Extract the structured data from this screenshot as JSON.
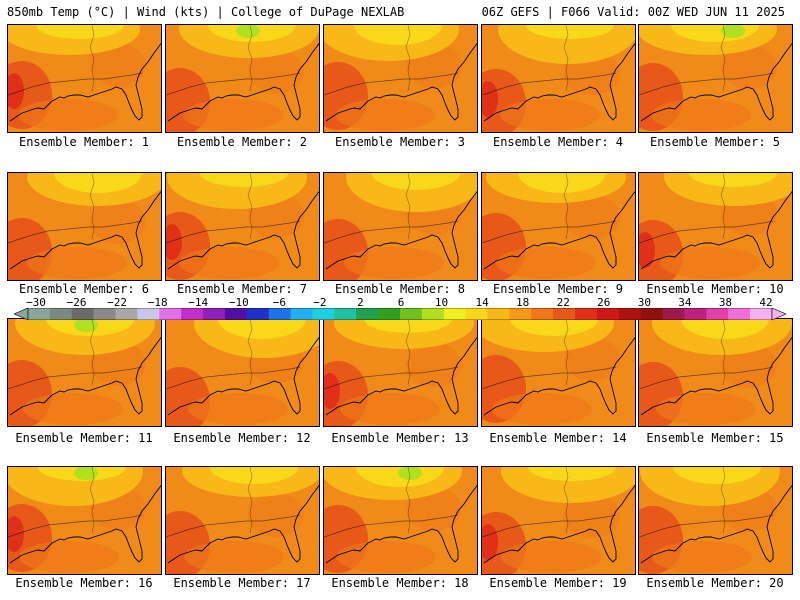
{
  "header": {
    "left": "850mb Temp (°C) | Wind (kts) | College of DuPage NEXLAB",
    "right": "06Z GEFS | F066 Valid: 00Z WED JUN 11 2025"
  },
  "panels": [
    {
      "label": "Ensemble Member: 1"
    },
    {
      "label": "Ensemble Member: 2"
    },
    {
      "label": "Ensemble Member: 3"
    },
    {
      "label": "Ensemble Member: 4"
    },
    {
      "label": "Ensemble Member: 5"
    },
    {
      "label": "Ensemble Member: 6"
    },
    {
      "label": "Ensemble Member: 7"
    },
    {
      "label": "Ensemble Member: 8"
    },
    {
      "label": "Ensemble Member: 9"
    },
    {
      "label": "Ensemble Member: 10"
    },
    {
      "label": "Ensemble Member: 11"
    },
    {
      "label": "Ensemble Member: 12"
    },
    {
      "label": "Ensemble Member: 13"
    },
    {
      "label": "Ensemble Member: 14"
    },
    {
      "label": "Ensemble Member: 15"
    },
    {
      "label": "Ensemble Member: 16"
    },
    {
      "label": "Ensemble Member: 17"
    },
    {
      "label": "Ensemble Member: 18"
    },
    {
      "label": "Ensemble Member: 19"
    },
    {
      "label": "Ensemble Member: 20"
    }
  ],
  "colorbar": {
    "tick_labels": [
      "−30",
      "−26",
      "−22",
      "−18",
      "−14",
      "−10",
      "−6",
      "−2",
      "2",
      "6",
      "10",
      "14",
      "18",
      "22",
      "26",
      "30",
      "34",
      "38",
      "42"
    ],
    "colors": [
      "#8aa69a",
      "#7a8a80",
      "#6a6a6a",
      "#8a8a8a",
      "#a8a8a8",
      "#c8c8e8",
      "#e070e8",
      "#c030c8",
      "#9020b8",
      "#5010a8",
      "#2030c8",
      "#2070e8",
      "#20b0f0",
      "#20d0e0",
      "#20c0a0",
      "#20a050",
      "#30a020",
      "#70c020",
      "#b0e020",
      "#f0f020",
      "#f8d818",
      "#f8b818",
      "#f89818",
      "#f07818",
      "#e85818",
      "#e03018",
      "#d01818",
      "#b01010",
      "#901010",
      "#a01850",
      "#c02080",
      "#e040a8",
      "#f070d8",
      "#f8b0f0"
    ]
  },
  "map": {
    "palette": {
      "base": "#f08a18",
      "yellow": "#f8d818",
      "light_orange": "#f8b818",
      "dark_orange": "#f07818",
      "red_orange": "#e85818",
      "red": "#e03018",
      "green": "#b0e020",
      "coast": "#000000"
    }
  }
}
